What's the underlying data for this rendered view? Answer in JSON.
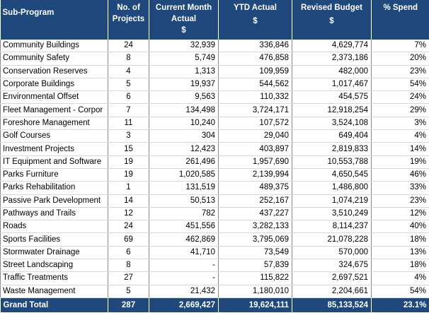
{
  "headers": {
    "sub_program": "Sub-Program",
    "projects_line1": "No. of",
    "projects_line2": "Projects",
    "current_line1": "Current Month",
    "current_line2": "Actual",
    "ytd": "YTD Actual",
    "budget": "Revised Budget",
    "spend": "% Spend",
    "currency": "$"
  },
  "rows": [
    {
      "name": "Community Buildings",
      "projects": "24",
      "current": "32,939",
      "ytd": "336,846",
      "budget": "4,629,774",
      "spend": "7%"
    },
    {
      "name": "Community Safety",
      "projects": "8",
      "current": "5,749",
      "ytd": "476,858",
      "budget": "2,373,186",
      "spend": "20%"
    },
    {
      "name": "Conservation Reserves",
      "projects": "4",
      "current": "1,313",
      "ytd": "109,959",
      "budget": "482,000",
      "spend": "23%"
    },
    {
      "name": "Corporate Buildings",
      "projects": "5",
      "current": "19,937",
      "ytd": "544,562",
      "budget": "1,017,467",
      "spend": "54%"
    },
    {
      "name": "Environmental Offset",
      "projects": "6",
      "current": "9,563",
      "ytd": "110,332",
      "budget": "454,575",
      "spend": "24%"
    },
    {
      "name": "Fleet Management - Corpor",
      "projects": "7",
      "current": "134,498",
      "ytd": "3,724,171",
      "budget": "12,918,254",
      "spend": "29%"
    },
    {
      "name": "Foreshore Management",
      "projects": "11",
      "current": "10,240",
      "ytd": "107,572",
      "budget": "3,524,108",
      "spend": "3%"
    },
    {
      "name": "Golf Courses",
      "projects": "3",
      "current": "304",
      "ytd": "29,040",
      "budget": "649,404",
      "spend": "4%"
    },
    {
      "name": "Investment Projects",
      "projects": "15",
      "current": "12,423",
      "ytd": "403,897",
      "budget": "2,819,833",
      "spend": "14%"
    },
    {
      "name": "IT Equipment and Software",
      "projects": "19",
      "current": "261,496",
      "ytd": "1,957,690",
      "budget": "10,553,788",
      "spend": "19%"
    },
    {
      "name": "Parks Furniture",
      "projects": "19",
      "current": "1,020,585",
      "ytd": "2,139,994",
      "budget": "4,650,545",
      "spend": "46%"
    },
    {
      "name": "Parks Rehabilitation",
      "projects": "1",
      "current": "131,519",
      "ytd": "489,375",
      "budget": "1,486,800",
      "spend": "33%"
    },
    {
      "name": "Passive Park Development",
      "projects": "14",
      "current": "50,513",
      "ytd": "252,167",
      "budget": "1,074,219",
      "spend": "23%"
    },
    {
      "name": "Pathways and Trails",
      "projects": "12",
      "current": "782",
      "ytd": "437,227",
      "budget": "3,510,249",
      "spend": "12%"
    },
    {
      "name": "Roads",
      "projects": "24",
      "current": "451,556",
      "ytd": "3,282,133",
      "budget": "8,114,237",
      "spend": "40%"
    },
    {
      "name": "Sports Facilities",
      "projects": "69",
      "current": "462,869",
      "ytd": "3,795,069",
      "budget": "21,078,228",
      "spend": "18%"
    },
    {
      "name": "Stormwater Drainage",
      "projects": "6",
      "current": "41,710",
      "ytd": "73,549",
      "budget": "570,000",
      "spend": "13%"
    },
    {
      "name": "Street Landscaping",
      "projects": "8",
      "current": "-",
      "ytd": "57,839",
      "budget": "324,675",
      "spend": "18%"
    },
    {
      "name": "Traffic Treatments",
      "projects": "27",
      "current": "-",
      "ytd": "115,822",
      "budget": "2,697,521",
      "spend": "4%"
    },
    {
      "name": "Waste Management",
      "projects": "5",
      "current": "21,432",
      "ytd": "1,180,010",
      "budget": "2,204,661",
      "spend": "54%"
    }
  ],
  "total": {
    "label": "Grand Total",
    "projects": "287",
    "current": "2,669,427",
    "ytd": "19,624,111",
    "budget": "85,133,524",
    "spend": "23.1%"
  },
  "colors": {
    "header_bg": "#1f497d",
    "header_text": "#ffffff"
  }
}
